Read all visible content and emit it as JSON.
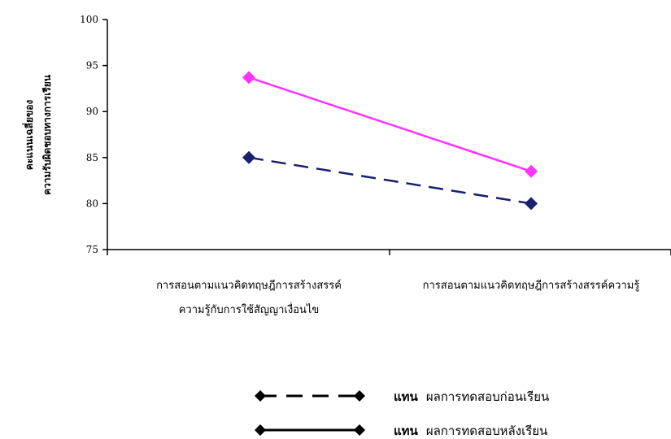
{
  "chart_data": {
    "type": "line",
    "categories": [
      [
        "การสอนตามแนวคิดทฤษฎีการสร้างสรรค์",
        "ความรู้กับการใช้สัญญาเงื่อนไข"
      ],
      [
        "การสอนตามแนวคิดทฤษฎีการสร้างสรรค์ความรู้"
      ]
    ],
    "ylabel": [
      "คะแนนเฉลี่ยของ",
      "ความรับผิดชอบทางการเรียน"
    ],
    "ylim": [
      75,
      100
    ],
    "yticks": [
      75,
      80,
      85,
      90,
      95,
      100
    ],
    "grid": false,
    "series": [
      {
        "name": "ผลการทดสอบก่อนเรียน",
        "values": [
          85,
          80
        ],
        "line_color": "#1a1f6e",
        "marker_color": "#1a1f6e",
        "dash": true
      },
      {
        "name": "ผลการทดสอบหลังเรียน",
        "values": [
          93.7,
          83.5
        ],
        "line_color": "#ff33ff",
        "marker_color": "#ff33ff",
        "dash": false
      }
    ],
    "legend": {
      "placement": "bottom",
      "prefix": "แทน",
      "items": [
        {
          "label": "ผลการทดสอบก่อนเรียน",
          "dash": true,
          "color": "#000000"
        },
        {
          "label": "ผลการทดสอบหลังเรียน",
          "dash": false,
          "color": "#000000"
        }
      ]
    }
  }
}
